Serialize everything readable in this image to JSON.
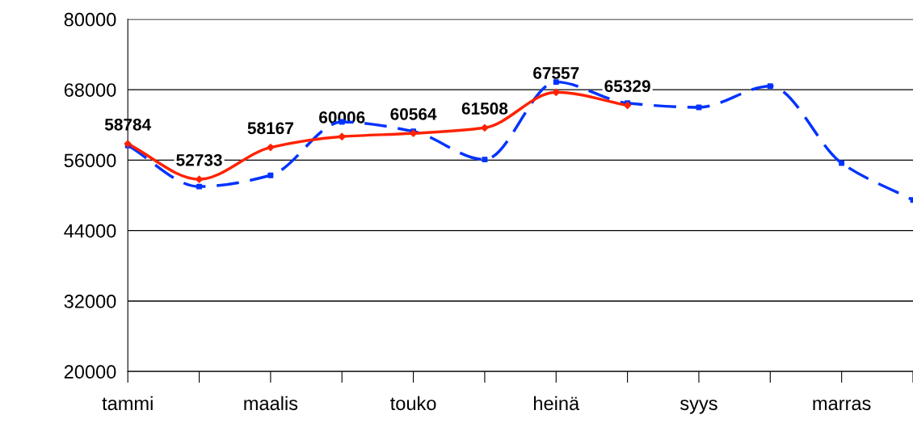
{
  "chart_data": {
    "type": "line",
    "categories": [
      "tammi",
      null,
      "maalis",
      null,
      "touko",
      null,
      "heinä",
      null,
      "syys",
      null,
      "marras",
      null
    ],
    "ylim": [
      20000,
      80000
    ],
    "yticks": [
      20000,
      32000,
      44000,
      56000,
      68000,
      80000
    ],
    "grid": "y",
    "series": [
      {
        "color": "#0033ff",
        "line_style": "dashed",
        "marker": "square",
        "values": [
          58500,
          51500,
          53400,
          62500,
          60900,
          56100,
          69300,
          65700,
          65000,
          68600,
          55500,
          49200
        ]
      },
      {
        "color": "#ff2200",
        "line_style": "solid",
        "marker": "diamond",
        "data_labels": true,
        "values": [
          58784,
          52733,
          58167,
          60006,
          60564,
          61508,
          67557,
          65329,
          null,
          null,
          null,
          null
        ]
      }
    ]
  }
}
